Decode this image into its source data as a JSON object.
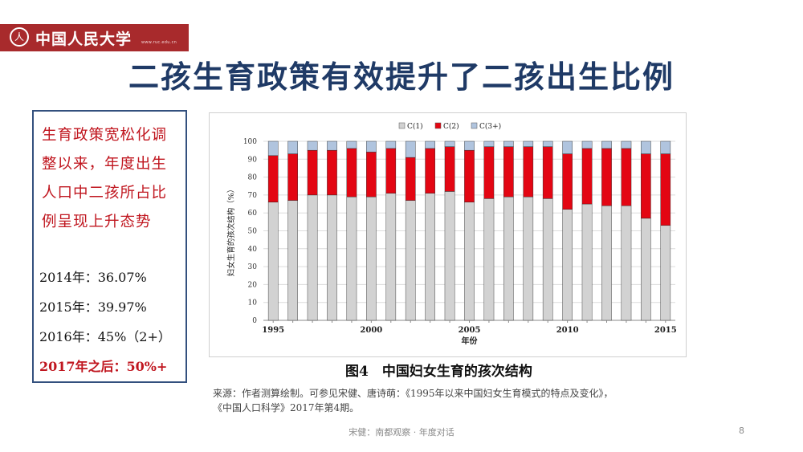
{
  "header": {
    "logo_seal": "人",
    "university_name": "中国人民大学",
    "university_url": "www.ruc.edu.cn",
    "title": "二孩生育政策有效提升了二孩出生比例"
  },
  "summary": {
    "description": "生育政策宽松化调整以来，年度出生人口中二孩所占比例呈现上升态势",
    "stats": [
      "2014年：36.07%",
      "2015年：39.97%",
      "2016年：45%（2+）"
    ],
    "highlight": "2017年之后：50%+"
  },
  "colors": {
    "title": "#1f3a66",
    "accent_red": "#c0161f",
    "logo_bg": "#a82a2c",
    "bar_c1": "#d2d2d2",
    "bar_c2": "#e30613",
    "bar_c3": "#b0c4de"
  },
  "chart_data": {
    "type": "bar",
    "stacked": true,
    "categories": [
      "1995",
      "1996",
      "1997",
      "1998",
      "1999",
      "2000",
      "2001",
      "2002",
      "2003",
      "2004",
      "2005",
      "2006",
      "2007",
      "2008",
      "2009",
      "2010",
      "2011",
      "2012",
      "2013",
      "2014",
      "2015"
    ],
    "series": [
      {
        "name": "C(1)",
        "color": "#d2d2d2",
        "values": [
          66,
          67,
          70,
          70,
          69,
          69,
          71,
          67,
          71,
          72,
          66,
          68,
          69,
          69,
          68,
          62,
          65,
          64,
          64,
          57,
          53
        ]
      },
      {
        "name": "C(2)",
        "color": "#e30613",
        "values": [
          26,
          26,
          25,
          25,
          27,
          25,
          25,
          24,
          25,
          25,
          29,
          29,
          28,
          28,
          29,
          31,
          31,
          32,
          32,
          36,
          40
        ]
      },
      {
        "name": "C(3+)",
        "color": "#b0c4de",
        "values": [
          8,
          7,
          5,
          5,
          4,
          6,
          4,
          9,
          4,
          3,
          5,
          3,
          3,
          3,
          3,
          7,
          4,
          4,
          4,
          7,
          7
        ]
      }
    ],
    "xlabel": "年份",
    "ylabel": "妇女生育的孩次结构（%）",
    "ylim": [
      0,
      100
    ],
    "yticks": [
      0,
      10,
      20,
      30,
      40,
      50,
      60,
      70,
      80,
      90,
      100
    ],
    "xtick_labels": [
      "1995",
      "2000",
      "2005",
      "2010",
      "2015"
    ],
    "legend_position": "top",
    "caption": "图4　中国妇女生育的孩次结构"
  },
  "source": {
    "line1": "来源：作者测算绘制。可参见宋健、唐诗萌：《1995年以来中国妇女生育模式的特点及变化》，",
    "line2": "《中国人口科学》2017年第4期。"
  },
  "footer": {
    "text": "宋健：南都观察 · 年度对话",
    "page": "8"
  }
}
